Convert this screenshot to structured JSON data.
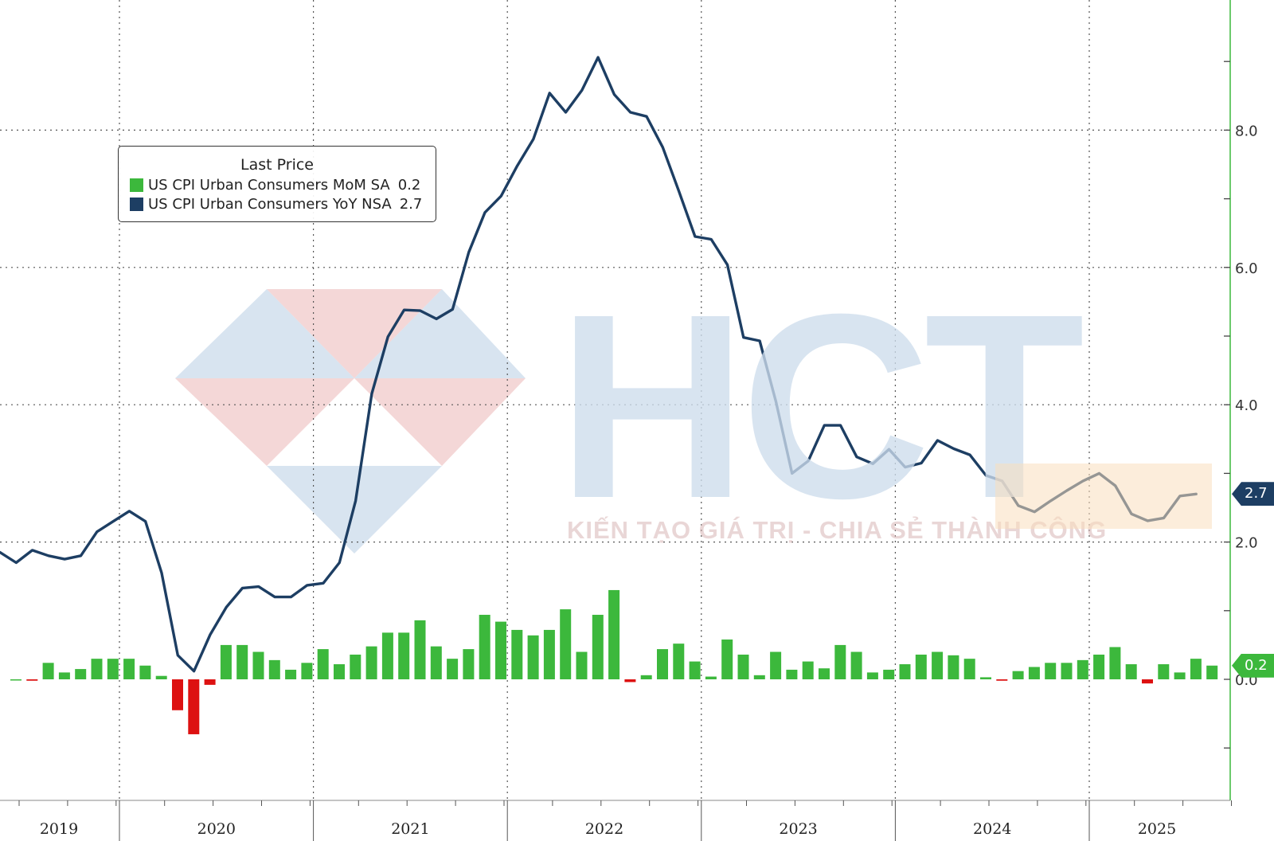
{
  "chart_data": {
    "type": "bar+line",
    "legend": {
      "title": "Last Price",
      "items": [
        {
          "name": "US CPI Urban Consumers MoM SA",
          "value": "0.2",
          "color": "#3cb83c"
        },
        {
          "name": "US CPI Urban Consumers YoY NSA",
          "value": "2.7",
          "color": "#1d3e63"
        }
      ]
    },
    "x_year_labels": [
      "2019",
      "2020",
      "2021",
      "2022",
      "2023",
      "2024",
      "2025"
    ],
    "y_ticks": [
      "0.0",
      "2.0",
      "4.0",
      "6.0",
      "8.0"
    ],
    "ylim": [
      -1.8,
      9.9
    ],
    "grid": true,
    "start_month": "2019-01",
    "series": [
      {
        "name": "US CPI Urban Consumers MoM SA",
        "type": "bar",
        "positive_color": "#3cb83c",
        "negative_color": "#dd1111",
        "values": [
          0.0,
          -0.02,
          0.24,
          0.1,
          0.15,
          0.3,
          0.3,
          0.3,
          0.2,
          0.05,
          -0.45,
          -0.8,
          -0.08,
          0.5,
          0.5,
          0.4,
          0.28,
          0.14,
          0.24,
          0.44,
          0.22,
          0.36,
          0.48,
          0.68,
          0.68,
          0.86,
          0.48,
          0.3,
          0.44,
          0.94,
          0.84,
          0.72,
          0.64,
          0.72,
          1.02,
          0.4,
          0.94,
          1.3,
          -0.04,
          0.06,
          0.44,
          0.52,
          0.26,
          0.04,
          0.58,
          0.36,
          0.06,
          0.4,
          0.14,
          0.26,
          0.16,
          0.5,
          0.4,
          0.1,
          0.14,
          0.22,
          0.36,
          0.4,
          0.35,
          0.3,
          0.03,
          -0.02,
          0.12,
          0.18,
          0.24,
          0.24,
          0.28,
          0.36,
          0.47,
          0.22,
          -0.06,
          0.22,
          0.1,
          0.3,
          0.2
        ]
      },
      {
        "name": "US CPI Urban Consumers YoY NSA",
        "type": "line",
        "color": "#1d3e63",
        "values": [
          1.85,
          1.7,
          1.88,
          1.8,
          1.75,
          1.8,
          2.15,
          2.3,
          2.45,
          2.3,
          1.55,
          0.35,
          0.12,
          0.65,
          1.05,
          1.33,
          1.35,
          1.2,
          1.2,
          1.37,
          1.4,
          1.7,
          2.6,
          4.16,
          4.99,
          5.38,
          5.37,
          5.25,
          5.39,
          6.22,
          6.8,
          7.04,
          7.48,
          7.87,
          8.54,
          8.26,
          8.58,
          9.06,
          8.52,
          8.26,
          8.2,
          7.75,
          7.11,
          6.45,
          6.41,
          6.04,
          4.98,
          4.93,
          4.05,
          3.0,
          3.18,
          3.7,
          3.7,
          3.24,
          3.14,
          3.35,
          3.09,
          3.15,
          3.48,
          3.36,
          3.27,
          2.97,
          2.89,
          2.53,
          2.44,
          2.6,
          2.75,
          2.89,
          3.0,
          2.82,
          2.41,
          2.31,
          2.35,
          2.67,
          2.7
        ]
      }
    ],
    "last_value_tags": [
      {
        "label": "2.7",
        "color": "#1d3e63"
      },
      {
        "label": "0.2",
        "color": "#3cb83c"
      }
    ]
  },
  "watermark": {
    "logo_text": "HCT",
    "tagline": "KIẾN TẠO GIÁ TRỊ - CHIA SẺ THÀNH CÔNG"
  }
}
